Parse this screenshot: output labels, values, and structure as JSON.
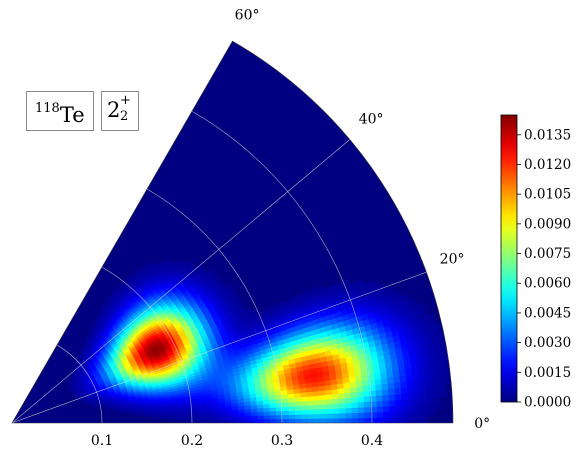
{
  "chart_data": {
    "type": "heatmap",
    "subtype": "polar-sector",
    "nucleus": {
      "mass_number": "118",
      "symbol": "Te"
    },
    "state": {
      "main": "2",
      "superscript": "+",
      "subscript": "2"
    },
    "radial_axis": {
      "range": [
        0,
        0.49
      ],
      "ticks": [
        "0.1",
        "0.2",
        "0.3",
        "0.4"
      ],
      "tick_values": [
        0.1,
        0.2,
        0.3,
        0.4
      ]
    },
    "angular_axis": {
      "range_deg": [
        0,
        60
      ],
      "ticks": [
        "0°",
        "20°",
        "40°",
        "60°"
      ],
      "tick_values": [
        0,
        20,
        40,
        60
      ]
    },
    "grid": true,
    "colormap": "jet",
    "colorbar": {
      "range": [
        0,
        0.0145
      ],
      "ticks": [
        "0.0000",
        "0.0015",
        "0.0030",
        "0.0045",
        "0.0060",
        "0.0075",
        "0.0090",
        "0.0105",
        "0.0120",
        "0.0135"
      ],
      "tick_values": [
        0,
        0.0015,
        0.003,
        0.0045,
        0.006,
        0.0075,
        0.009,
        0.0105,
        0.012,
        0.0135
      ],
      "placement": "right"
    },
    "peaks": [
      {
        "beta": 0.18,
        "gamma_deg": 27,
        "value": 0.0143,
        "beta_width": 0.038,
        "gamma_width_deg": 9
      },
      {
        "beta": 0.34,
        "gamma_deg": 9,
        "value": 0.0125,
        "beta_width": 0.055,
        "gamma_width_deg": 5.5
      }
    ]
  }
}
